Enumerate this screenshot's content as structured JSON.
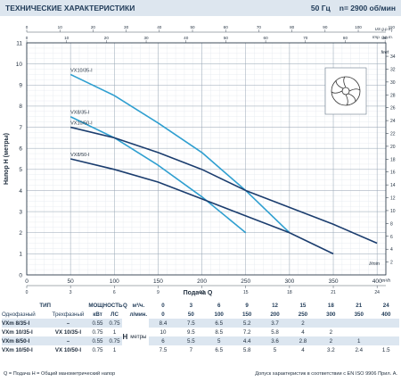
{
  "header": {
    "title": "ТЕХНИЧЕСКИЕ ХАРАКТЕРИСТИКИ",
    "freq": "50 Гц",
    "speed": "n= 2900 об/мин"
  },
  "chart_data": {
    "type": "line",
    "title": "",
    "xlabel": "Подача Q",
    "ylabel": "Напор H (метры)",
    "xlim": [
      0,
      410
    ],
    "ylim": [
      0,
      11
    ],
    "x_unit": "l/min",
    "x_ticks": [
      0,
      50,
      100,
      150,
      200,
      250,
      300,
      350,
      400
    ],
    "y_ticks": [
      0,
      1,
      2,
      3,
      4,
      5,
      6,
      7,
      8,
      9,
      10,
      11
    ],
    "right_axis": {
      "label": "feet",
      "ticks": [
        2,
        4,
        6,
        8,
        10,
        12,
        14,
        16,
        18,
        20,
        22,
        24,
        26,
        28,
        30,
        32,
        34
      ]
    },
    "top_axis_usgpm": {
      "label": "US g.p.m.",
      "ticks": [
        0,
        10,
        20,
        30,
        40,
        50,
        60,
        70,
        80,
        90,
        100,
        110
      ]
    },
    "top_axis_impgpm": {
      "label": "Imp. g.p.m.",
      "ticks": [
        0,
        10,
        20,
        30,
        40,
        50,
        60,
        70,
        80,
        90
      ]
    },
    "bottom_axis_m3h": {
      "label": "m³/h",
      "ticks": [
        0,
        3,
        6,
        9,
        12,
        15,
        18,
        21,
        24
      ]
    },
    "grid": true,
    "series": [
      {
        "name": "VX10/35-I",
        "x": [
          50,
          100,
          150,
          200,
          250,
          300
        ],
        "y": [
          9.5,
          8.5,
          7.2,
          5.8,
          4.0,
          2.0
        ]
      },
      {
        "name": "VX8/35-I",
        "x": [
          50,
          100,
          150,
          200,
          250
        ],
        "y": [
          7.5,
          6.5,
          5.2,
          3.7,
          2.0
        ]
      },
      {
        "name": "VX10/50-I",
        "x": [
          50,
          100,
          150,
          200,
          250,
          300,
          350,
          400
        ],
        "y": [
          7.0,
          6.5,
          5.8,
          5.0,
          4.0,
          3.2,
          2.4,
          1.5
        ]
      },
      {
        "name": "VX8/50-I",
        "x": [
          50,
          100,
          150,
          200,
          250,
          300,
          350
        ],
        "y": [
          5.5,
          5.0,
          4.4,
          3.6,
          2.8,
          2.0,
          1.0
        ]
      }
    ]
  },
  "table": {
    "type_label": "ТИП",
    "power_label": "МОЩНОСТЬ",
    "single_phase": "Однофазный",
    "three_phase": "Трехфазный",
    "kw": "кВт",
    "hp": "ЛС",
    "q_label": "Q",
    "q_unit1": "м³/ч.",
    "q_unit2": "л/мин.",
    "h_label": "H",
    "h_unit": "метры",
    "m3h": [
      "0",
      "3",
      "6",
      "9",
      "12",
      "15",
      "18",
      "21",
      "24"
    ],
    "lmin": [
      "0",
      "50",
      "100",
      "150",
      "200",
      "250",
      "300",
      "350",
      "400"
    ],
    "rows": [
      {
        "single": "VXm 8/35-I",
        "three": "–",
        "kw": "0.55",
        "hp": "0.75",
        "h": [
          "8.4",
          "7.5",
          "6.5",
          "5.2",
          "3.7",
          "2",
          "",
          "",
          ""
        ]
      },
      {
        "single": "VXm 10/35-I",
        "three": "VX 10/35-I",
        "kw": "0.75",
        "hp": "1",
        "h": [
          "10",
          "9.5",
          "8.5",
          "7.2",
          "5.8",
          "4",
          "2",
          "",
          ""
        ]
      },
      {
        "single": "VXm 8/50-I",
        "three": "–",
        "kw": "0.55",
        "hp": "0.75",
        "h": [
          "6",
          "5.5",
          "5",
          "4.4",
          "3.6",
          "2.8",
          "2",
          "1",
          ""
        ]
      },
      {
        "single": "VXm 10/50-I",
        "three": "VX 10/50-I",
        "kw": "0.75",
        "hp": "1",
        "h": [
          "7.5",
          "7",
          "6.5",
          "5.8",
          "5",
          "4",
          "3.2",
          "2.4",
          "1.5"
        ]
      }
    ]
  },
  "footer": {
    "legend": "Q = Подача  H = Общий манометрический напор",
    "note": "Допуск характеристик в соответствии с EN ISO 9906 Прил. A."
  },
  "colors": {
    "header_bg": "#dde6ef",
    "light_curve": "#2f9fd0",
    "dark_curve": "#1b3d6e",
    "row_shade": "#dce6f0"
  }
}
